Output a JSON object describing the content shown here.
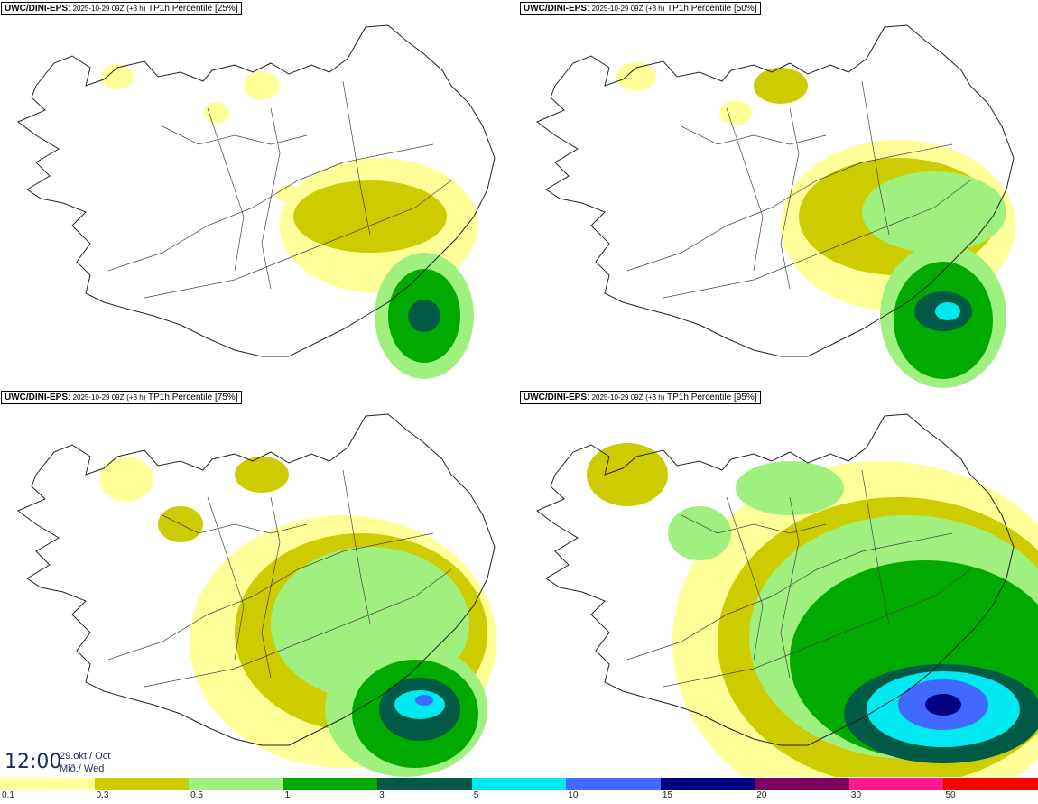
{
  "panels": [
    {
      "model": "UWC/DINI-EPS",
      "run": "2025-10-29 09Z",
      "lead": "(+3 h)",
      "field": "TP1h Percentile [25%]"
    },
    {
      "model": "UWC/DINI-EPS",
      "run": "2025-10-29 09Z",
      "lead": "(+3 h)",
      "field": "TP1h Percentile [50%]"
    },
    {
      "model": "UWC/DINI-EPS",
      "run": "2025-10-29 09Z",
      "lead": "(+3 h)",
      "field": "TP1h Percentile [75%]"
    },
    {
      "model": "UWC/DINI-EPS",
      "run": "2025-10-29 09Z",
      "lead": "(+3 h)",
      "field": "TP1h Percentile [95%]"
    }
  ],
  "valid_time": {
    "time": "12:00",
    "date": "29.okt./ Oct",
    "weekday": "Mið./ Wed"
  },
  "legend": {
    "colors": [
      "#ffff9a",
      "#cccc00",
      "#a0f080",
      "#00aa00",
      "#005a46",
      "#00e8f0",
      "#4169ff",
      "#000080",
      "#800060",
      "#ff1a90",
      "#ff0000"
    ],
    "labels": [
      "0.1",
      "0.3",
      "0.5",
      "1",
      "3",
      "5",
      "10",
      "15",
      "20",
      "30",
      "50"
    ]
  },
  "colors": {
    "coast": "#222222",
    "roads": "#444444"
  }
}
